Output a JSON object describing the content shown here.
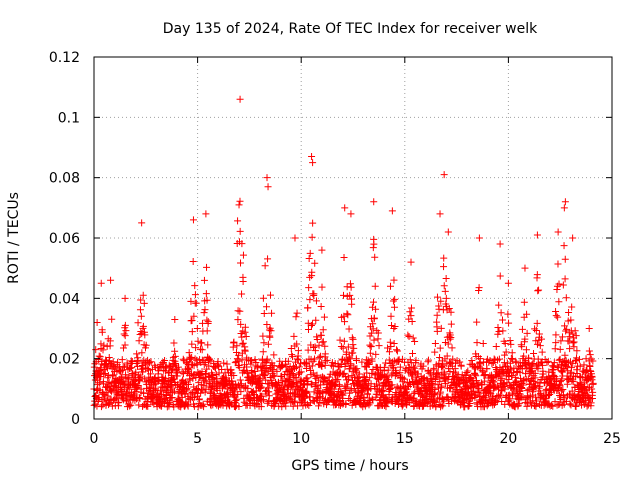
{
  "chart_data": {
    "type": "scatter",
    "title": "Day 135 of 2024, Rate Of TEC Index for receiver welk",
    "xlabel": "GPS time / hours",
    "ylabel": "ROTI / TECUs",
    "xlim": [
      0,
      25
    ],
    "ylim": [
      0,
      0.12
    ],
    "xticks": [
      0,
      5,
      10,
      15,
      20,
      25
    ],
    "xtick_labels": [
      "0",
      "5",
      "10",
      "15",
      "20",
      "25"
    ],
    "yticks": [
      0,
      0.02,
      0.04,
      0.06,
      0.08,
      0.1,
      0.12
    ],
    "ytick_labels": [
      "0",
      "0.02",
      "0.04",
      "0.06",
      "0.08",
      "0.1",
      "0.12"
    ],
    "grid": true,
    "marker": "+",
    "series": [
      {
        "name": "ROTI",
        "color": "#ff0000",
        "notable_points": [
          {
            "x": 7.05,
            "y": 0.106
          },
          {
            "x": 10.5,
            "y": 0.087
          },
          {
            "x": 10.55,
            "y": 0.085
          },
          {
            "x": 16.9,
            "y": 0.081
          },
          {
            "x": 8.35,
            "y": 0.08
          },
          {
            "x": 8.4,
            "y": 0.077
          },
          {
            "x": 22.75,
            "y": 0.072
          },
          {
            "x": 22.7,
            "y": 0.07
          },
          {
            "x": 7.0,
            "y": 0.071
          },
          {
            "x": 16.7,
            "y": 0.068
          },
          {
            "x": 5.4,
            "y": 0.068
          },
          {
            "x": 13.5,
            "y": 0.072
          },
          {
            "x": 14.4,
            "y": 0.069
          },
          {
            "x": 2.3,
            "y": 0.065
          },
          {
            "x": 4.8,
            "y": 0.066
          },
          {
            "x": 12.1,
            "y": 0.07
          },
          {
            "x": 12.4,
            "y": 0.068
          },
          {
            "x": 17.1,
            "y": 0.062
          },
          {
            "x": 18.6,
            "y": 0.06
          },
          {
            "x": 19.6,
            "y": 0.058
          },
          {
            "x": 21.4,
            "y": 0.061
          },
          {
            "x": 22.4,
            "y": 0.062
          },
          {
            "x": 23.1,
            "y": 0.06
          },
          {
            "x": 0.15,
            "y": 0.032
          },
          {
            "x": 0.35,
            "y": 0.045
          },
          {
            "x": 0.8,
            "y": 0.046
          },
          {
            "x": 1.5,
            "y": 0.04
          },
          {
            "x": 3.9,
            "y": 0.033
          },
          {
            "x": 9.7,
            "y": 0.06
          },
          {
            "x": 11.0,
            "y": 0.056
          },
          {
            "x": 15.3,
            "y": 0.052
          },
          {
            "x": 20.0,
            "y": 0.045
          },
          {
            "x": 20.8,
            "y": 0.05
          },
          {
            "x": 23.9,
            "y": 0.03
          }
        ],
        "baseline_range": [
          0.004,
          0.02
        ],
        "points_per_hour": 120
      }
    ]
  }
}
